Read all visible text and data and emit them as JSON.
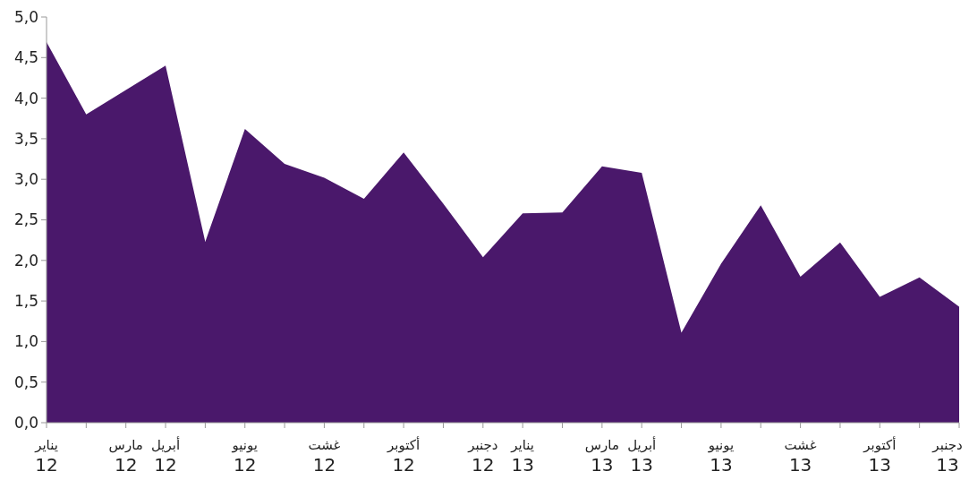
{
  "chart_data": {
    "type": "area",
    "categories": [
      "يناير 12",
      null,
      "مارس 12",
      "أبريل 12",
      null,
      "يونيو 12",
      null,
      "غشت 12",
      null,
      "أكتوبر 12",
      null,
      "دجنبر 12",
      "يناير 13",
      null,
      "مارس 13",
      "أبريل 13",
      null,
      "يونيو 13",
      null,
      "غشت 13",
      null,
      "أكتوبر 13",
      null,
      "دجنبر 13"
    ],
    "series": [
      {
        "color": "#4a186b",
        "values": [
          4.69,
          3.8,
          4.1,
          4.4,
          2.23,
          3.62,
          3.19,
          3.02,
          2.76,
          3.33,
          2.7,
          2.04,
          2.58,
          2.59,
          3.16,
          3.08,
          1.11,
          1.96,
          2.68,
          1.8,
          2.22,
          1.55,
          1.79,
          1.43
        ]
      }
    ],
    "ylim": [
      0,
      5
    ],
    "yticks": [
      {
        "value": 0,
        "label": "0,0"
      },
      {
        "value": 0.5,
        "label": "0,5"
      },
      {
        "value": 1,
        "label": "1,0"
      },
      {
        "value": 1.5,
        "label": "1,5"
      },
      {
        "value": 2,
        "label": "2,0"
      },
      {
        "value": 2.5,
        "label": "2,5"
      },
      {
        "value": 3,
        "label": "3,0"
      },
      {
        "value": 3.5,
        "label": "3,5"
      },
      {
        "value": 4,
        "label": "4,0"
      },
      {
        "value": 4.5,
        "label": "4,5"
      },
      {
        "value": 5,
        "label": "5,0"
      }
    ],
    "grid": false
  }
}
